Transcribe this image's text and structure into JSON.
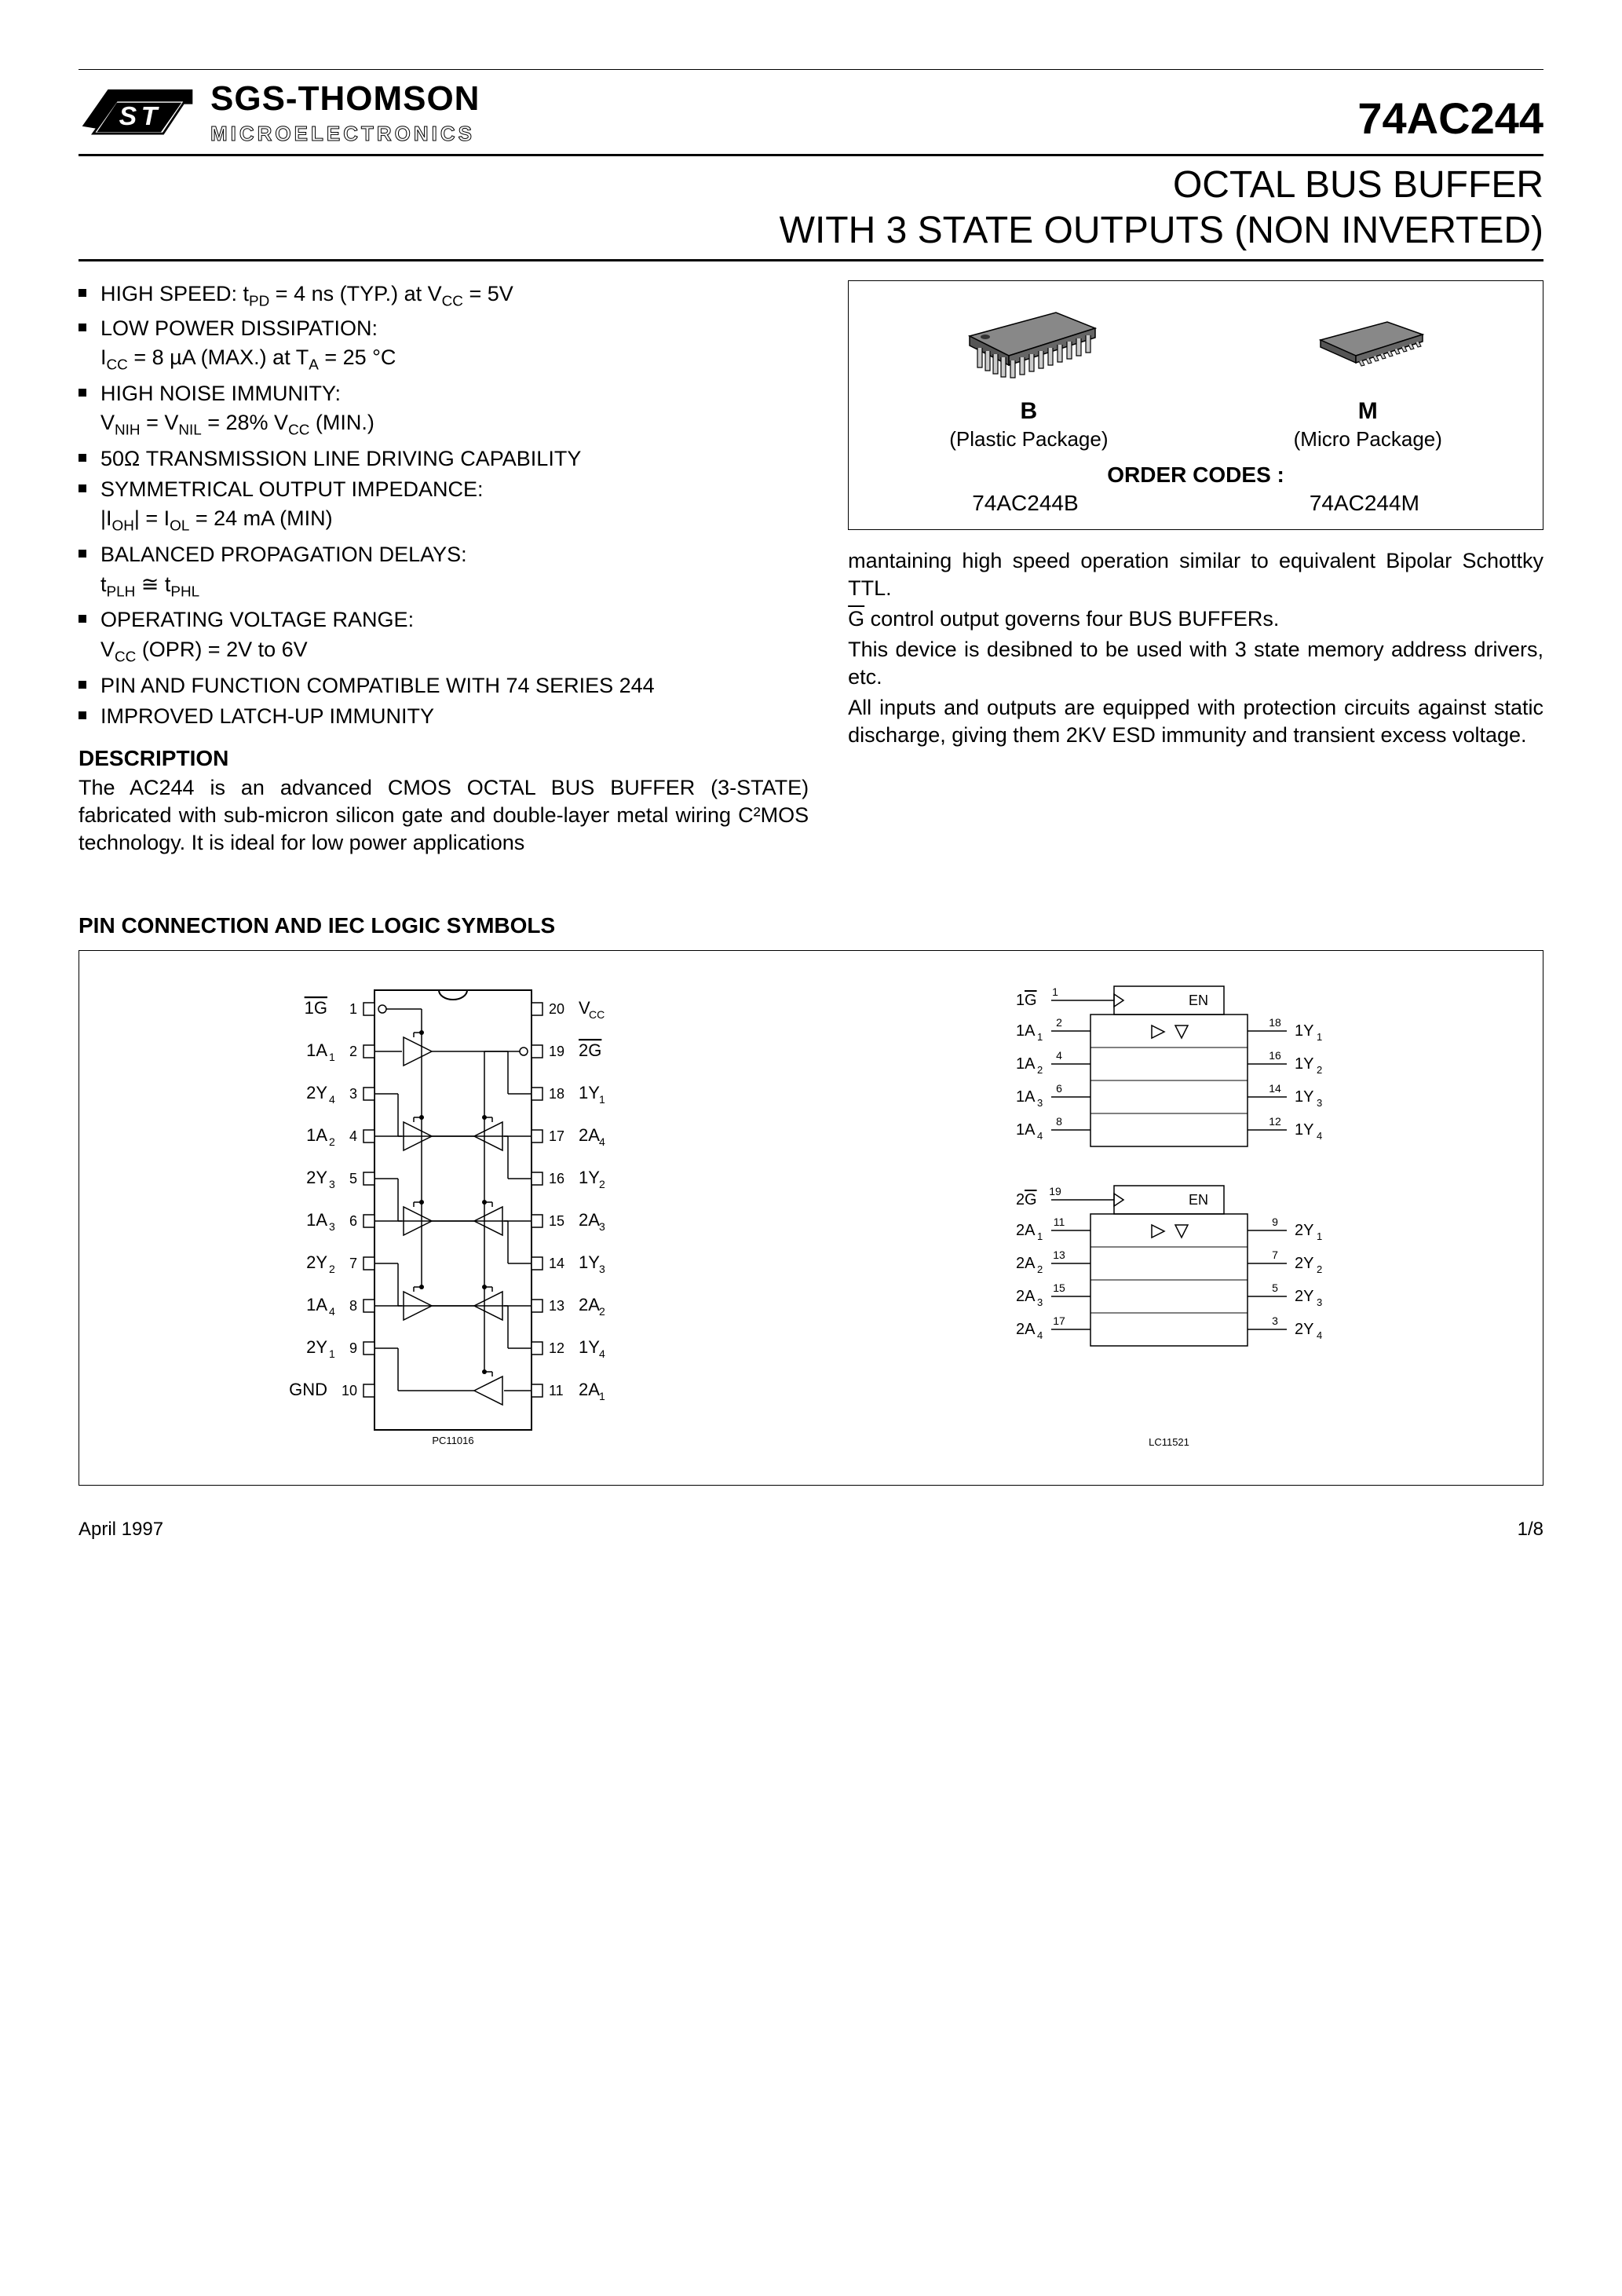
{
  "logo": {
    "line1": "SGS-THOMSON",
    "line2": "MICROELECTRONICS"
  },
  "part_number": "74AC244",
  "title_line1": "OCTAL BUS BUFFER",
  "title_line2": "WITH 3 STATE OUTPUTS (NON INVERTED)",
  "features": [
    {
      "main": "HIGH SPEED: t_PD = 4 ns (TYP.) at V_CC = 5V"
    },
    {
      "main": "LOW POWER DISSIPATION:",
      "sub": "I_CC = 8 µA (MAX.) at T_A = 25 °C"
    },
    {
      "main": "HIGH NOISE IMMUNITY:",
      "sub": "V_NIH = V_NIL = 28% V_CC (MIN.)"
    },
    {
      "main": "50Ω TRANSMISSION LINE DRIVING CAPABILITY"
    },
    {
      "main": "SYMMETRICAL OUTPUT IMPEDANCE:",
      "sub": "|I_OH| = I_OL = 24 mA (MIN)"
    },
    {
      "main": "BALANCED PROPAGATION DELAYS:",
      "sub": "t_PLH ≅ t_PHL"
    },
    {
      "main": "OPERATING VOLTAGE RANGE:",
      "sub": "V_CC (OPR) = 2V to 6V"
    },
    {
      "main": "PIN AND FUNCTION COMPATIBLE WITH 74 SERIES 244"
    },
    {
      "main": "IMPROVED LATCH-UP IMMUNITY"
    }
  ],
  "description_heading": "DESCRIPTION",
  "description_left": "The AC244 is an advanced CMOS OCTAL BUS BUFFER (3-STATE) fabricated with sub-micron silicon gate and double-layer metal wiring C²MOS technology. It is ideal for low power applications",
  "package_box": {
    "pkg_b_label": "B",
    "pkg_b_sub": "(Plastic Package)",
    "pkg_m_label": "M",
    "pkg_m_sub": "(Micro Package)",
    "order_codes_label": "ORDER CODES :",
    "code_b": "74AC244B",
    "code_m": "74AC244M"
  },
  "description_right_p1": "mantaining high speed operation similar to equivalent Bipolar Schottky TTL.",
  "description_right_p2_prefix": "G",
  "description_right_p2": " control output governs four BUS BUFFERs.",
  "description_right_p3": "This device is desibned to be used with 3 state memory address drivers, etc.",
  "description_right_p4": "All inputs and outputs are equipped with protection circuits against static discharge, giving them 2KV ESD immunity and transient excess voltage.",
  "pin_section_heading": "PIN CONNECTION AND IEC LOGIC SYMBOLS",
  "pinout": {
    "left_pins": [
      {
        "n": "1",
        "l": "1G",
        "over": true
      },
      {
        "n": "2",
        "l": "1A",
        "sub": "1"
      },
      {
        "n": "3",
        "l": "2Y",
        "sub": "4"
      },
      {
        "n": "4",
        "l": "1A",
        "sub": "2"
      },
      {
        "n": "5",
        "l": "2Y",
        "sub": "3"
      },
      {
        "n": "6",
        "l": "1A",
        "sub": "3"
      },
      {
        "n": "7",
        "l": "2Y",
        "sub": "2"
      },
      {
        "n": "8",
        "l": "1A",
        "sub": "4"
      },
      {
        "n": "9",
        "l": "2Y",
        "sub": "1"
      },
      {
        "n": "10",
        "l": "GND"
      }
    ],
    "right_pins": [
      {
        "n": "20",
        "l": "V",
        "sub": "CC"
      },
      {
        "n": "19",
        "l": "2G",
        "over": true
      },
      {
        "n": "18",
        "l": "1Y",
        "sub": "1"
      },
      {
        "n": "17",
        "l": "2A",
        "sub": "4"
      },
      {
        "n": "16",
        "l": "1Y",
        "sub": "2"
      },
      {
        "n": "15",
        "l": "2A",
        "sub": "3"
      },
      {
        "n": "14",
        "l": "1Y",
        "sub": "3"
      },
      {
        "n": "13",
        "l": "2A",
        "sub": "2"
      },
      {
        "n": "12",
        "l": "1Y",
        "sub": "4"
      },
      {
        "n": "11",
        "l": "2A",
        "sub": "1"
      }
    ],
    "src_label": "PC11016"
  },
  "iec": {
    "block1": {
      "g_label": "1G",
      "g_pin": "1",
      "en": "EN",
      "inputs": [
        {
          "l": "1A",
          "sub": "1",
          "pin": "2"
        },
        {
          "l": "1A",
          "sub": "2",
          "pin": "4"
        },
        {
          "l": "1A",
          "sub": "3",
          "pin": "6"
        },
        {
          "l": "1A",
          "sub": "4",
          "pin": "8"
        }
      ],
      "outputs": [
        {
          "l": "1Y",
          "sub": "1",
          "pin": "18"
        },
        {
          "l": "1Y",
          "sub": "2",
          "pin": "16"
        },
        {
          "l": "1Y",
          "sub": "3",
          "pin": "14"
        },
        {
          "l": "1Y",
          "sub": "4",
          "pin": "12"
        }
      ]
    },
    "block2": {
      "g_label": "2G",
      "g_pin": "19",
      "en": "EN",
      "inputs": [
        {
          "l": "2A",
          "sub": "1",
          "pin": "11"
        },
        {
          "l": "2A",
          "sub": "2",
          "pin": "13"
        },
        {
          "l": "2A",
          "sub": "3",
          "pin": "15"
        },
        {
          "l": "2A",
          "sub": "4",
          "pin": "17"
        }
      ],
      "outputs": [
        {
          "l": "2Y",
          "sub": "1",
          "pin": "9"
        },
        {
          "l": "2Y",
          "sub": "2",
          "pin": "7"
        },
        {
          "l": "2Y",
          "sub": "3",
          "pin": "5"
        },
        {
          "l": "2Y",
          "sub": "4",
          "pin": "3"
        }
      ]
    },
    "src_label": "LC11521"
  },
  "footer": {
    "date": "April 1997",
    "page": "1/8"
  },
  "colors": {
    "line": "#000000",
    "bg": "#ffffff"
  }
}
